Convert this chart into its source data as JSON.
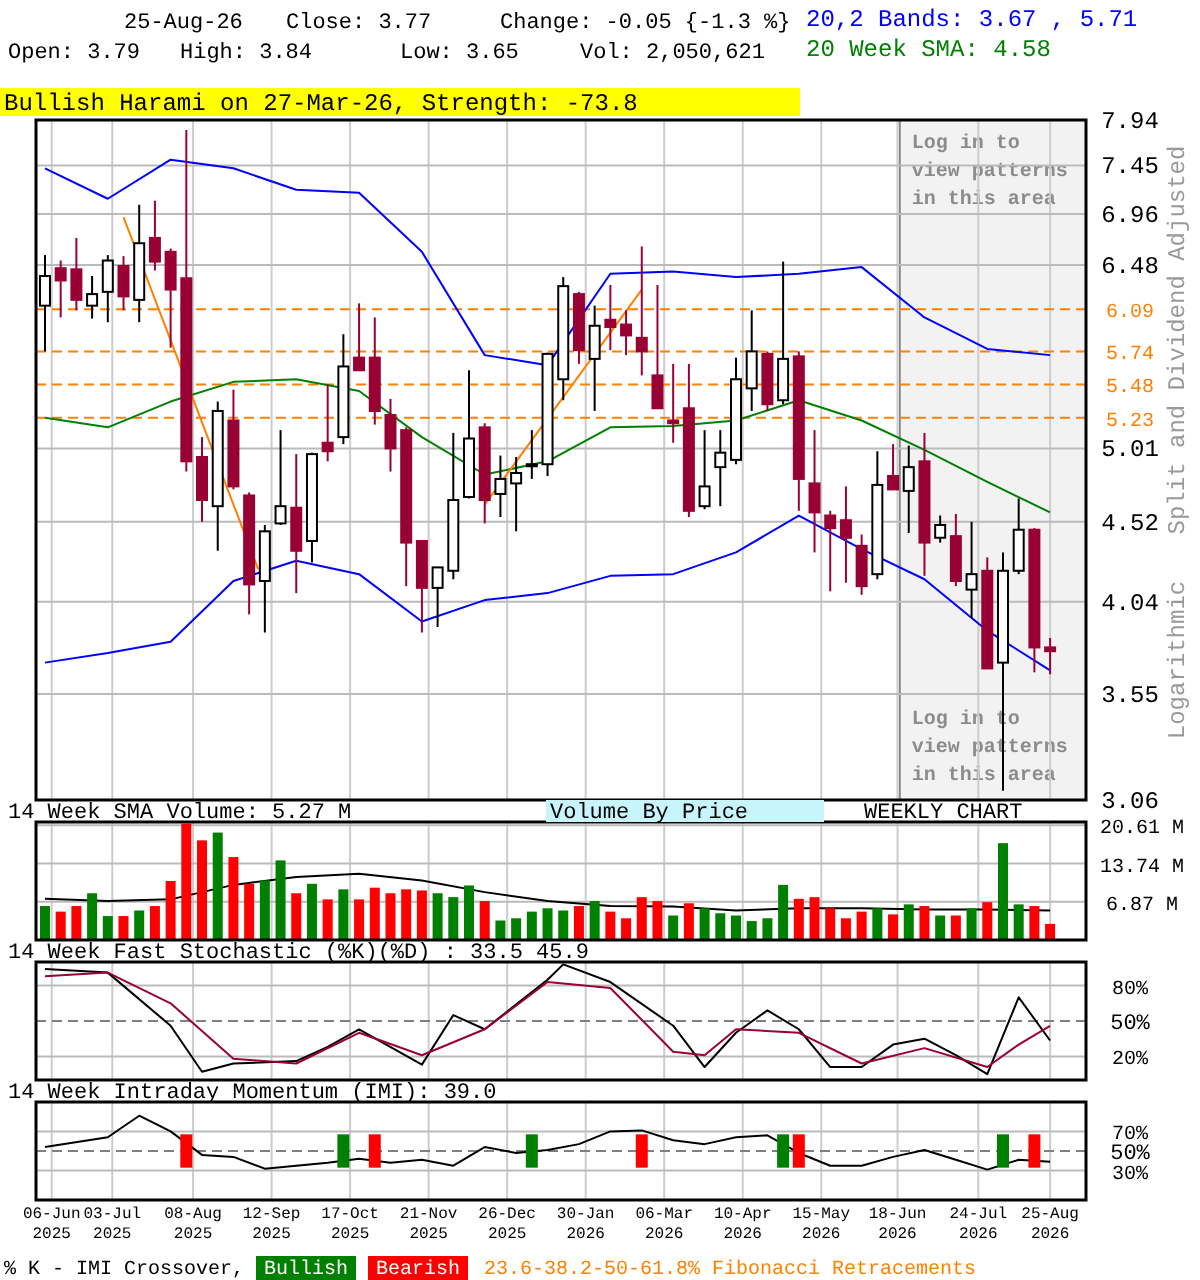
{
  "chart_data": [
    {
      "type": "candlestick",
      "title": "Bullish Harami on 27-Mar-26, Strength: -73.8",
      "ylabel": "Split and Dividend Adjusted",
      "log": true,
      "grid": true,
      "legend": "top right",
      "tick_labels": "y",
      "annotations": [
        "25-Aug-26",
        "Close: 3.77",
        "Change: -0.05 {-1.3 %}",
        "Open: 3.79",
        "High: 3.84",
        "Low: 3.65",
        "Vol: 2,050,621",
        "Logarithmic"
      ],
      "xlim": [
        "2025-05-30",
        "2026-09-10"
      ],
      "xticks": [
        "2025-06-06",
        "2025-07-03",
        "2025-08-08",
        "2025-09-12",
        "2025-10-17",
        "2025-11-21",
        "2025-12-26",
        "2026-01-30",
        "2026-03-06",
        "2026-04-10",
        "2026-05-15",
        "2026-06-18",
        "2026-07-24",
        "2026-08-25"
      ],
      "ylim": [
        3.06,
        7.94
      ],
      "yticks": [
        3.06,
        3.55,
        4.04,
        4.52,
        5.01,
        6.48,
        6.96,
        7.45,
        7.94
      ],
      "ref_lines": [
        {
          "axis": "y",
          "value": 6.09,
          "label": "6.09",
          "color": "#ff8000",
          "line_style": "dashed"
        },
        {
          "axis": "y",
          "value": 5.74,
          "label": "5.74",
          "color": "#ff8000",
          "line_style": "dashed"
        },
        {
          "axis": "y",
          "value": 5.48,
          "label": "5.48",
          "color": "#ff8000",
          "line_style": "dashed"
        },
        {
          "axis": "y",
          "value": 5.23,
          "label": "5.23",
          "color": "#ff8000",
          "line_style": "dashed"
        }
      ],
      "bands": [
        {
          "axis": "x",
          "from": "2026-06-19",
          "to": "2026-09-10",
          "label": "Log in to view patterns in this area",
          "color": "#f2f2f2"
        }
      ],
      "x": [
        "2025-06-03",
        "2025-06-10",
        "2025-06-17",
        "2025-06-24",
        "2025-07-01",
        "2025-07-08",
        "2025-07-15",
        "2025-07-22",
        "2025-07-29",
        "2025-08-05",
        "2025-08-12",
        "2025-08-19",
        "2025-08-26",
        "2025-09-02",
        "2025-09-09",
        "2025-09-16",
        "2025-09-23",
        "2025-09-30",
        "2025-10-07",
        "2025-10-14",
        "2025-10-21",
        "2025-10-28",
        "2025-11-04",
        "2025-11-11",
        "2025-11-18",
        "2025-11-25",
        "2025-12-02",
        "2025-12-09",
        "2025-12-16",
        "2025-12-23",
        "2025-12-30",
        "2026-01-06",
        "2026-01-13",
        "2026-01-20",
        "2026-01-27",
        "2026-02-03",
        "2026-02-10",
        "2026-02-17",
        "2026-02-24",
        "2026-03-03",
        "2026-03-10",
        "2026-03-17",
        "2026-03-24",
        "2026-03-31",
        "2026-04-07",
        "2026-04-14",
        "2026-04-21",
        "2026-04-28",
        "2026-05-05",
        "2026-05-12",
        "2026-05-19",
        "2026-05-26",
        "2026-06-02",
        "2026-06-09",
        "2026-06-16",
        "2026-06-23",
        "2026-06-30",
        "2026-07-07",
        "2026-07-14",
        "2026-07-21",
        "2026-07-28",
        "2026-08-04",
        "2026-08-11",
        "2026-08-18",
        "2026-08-25"
      ],
      "ohlc": [
        [
          6.12,
          6.57,
          5.74,
          6.38
        ],
        [
          6.45,
          6.52,
          6.02,
          6.34
        ],
        [
          6.44,
          6.73,
          6.08,
          6.17
        ],
        [
          6.12,
          6.38,
          6.01,
          6.22
        ],
        [
          6.24,
          6.57,
          5.98,
          6.52
        ],
        [
          6.47,
          6.56,
          6.08,
          6.2
        ],
        [
          6.17,
          7.05,
          5.98,
          6.68
        ],
        [
          6.73,
          7.09,
          6.43,
          6.51
        ],
        [
          6.6,
          6.63,
          5.77,
          6.26
        ],
        [
          6.36,
          7.83,
          4.85,
          4.92
        ],
        [
          4.95,
          5.09,
          4.52,
          4.66
        ],
        [
          4.62,
          5.35,
          4.34,
          5.28
        ],
        [
          5.21,
          5.44,
          4.73,
          4.75
        ],
        [
          4.69,
          4.71,
          3.97,
          4.14
        ],
        [
          4.16,
          4.5,
          3.87,
          4.46
        ],
        [
          4.51,
          5.14,
          4.5,
          4.62
        ],
        [
          4.61,
          4.97,
          4.09,
          4.34
        ],
        [
          4.4,
          4.98,
          4.27,
          4.97
        ],
        [
          5.05,
          5.48,
          4.92,
          4.99
        ],
        [
          5.09,
          5.88,
          5.04,
          5.62
        ],
        [
          5.69,
          6.14,
          5.59,
          5.59
        ],
        [
          5.69,
          6.02,
          5.18,
          5.28
        ],
        [
          5.25,
          5.37,
          4.85,
          5.01
        ],
        [
          5.14,
          5.16,
          4.13,
          4.39
        ],
        [
          4.4,
          4.4,
          3.87,
          4.12
        ],
        [
          4.12,
          4.24,
          3.9,
          4.24
        ],
        [
          4.22,
          5.12,
          4.17,
          4.66
        ],
        [
          4.68,
          5.59,
          4.67,
          5.08
        ],
        [
          5.16,
          5.19,
          4.51,
          4.66
        ],
        [
          4.7,
          4.96,
          4.55,
          4.8
        ],
        [
          4.77,
          4.95,
          4.46,
          4.84
        ],
        [
          4.89,
          5.14,
          4.8,
          4.9
        ],
        [
          4.9,
          5.73,
          4.82,
          5.72
        ],
        [
          5.52,
          6.37,
          5.36,
          6.29
        ],
        [
          6.22,
          6.24,
          5.64,
          5.75
        ],
        [
          5.68,
          6.12,
          5.28,
          5.95
        ],
        [
          6.0,
          6.3,
          5.75,
          5.94
        ],
        [
          5.96,
          6.08,
          5.71,
          5.87
        ],
        [
          5.85,
          6.65,
          5.55,
          5.74
        ],
        [
          5.55,
          6.3,
          5.3,
          5.3
        ],
        [
          5.21,
          5.64,
          5.05,
          5.19
        ],
        [
          5.3,
          5.64,
          4.55,
          4.59
        ],
        [
          4.62,
          5.14,
          4.6,
          4.75
        ],
        [
          4.88,
          5.14,
          4.62,
          4.98
        ],
        [
          4.93,
          5.69,
          4.9,
          5.52
        ],
        [
          5.45,
          6.08,
          5.28,
          5.74
        ],
        [
          5.72,
          5.74,
          5.28,
          5.33
        ],
        [
          5.36,
          6.51,
          5.33,
          5.68
        ],
        [
          5.7,
          5.74,
          4.59,
          4.8
        ],
        [
          4.77,
          5.14,
          4.33,
          4.58
        ],
        [
          4.56,
          4.59,
          4.1,
          4.48
        ],
        [
          4.53,
          4.75,
          4.15,
          4.42
        ],
        [
          4.37,
          4.44,
          4.08,
          4.13
        ],
        [
          4.2,
          4.99,
          4.17,
          4.76
        ],
        [
          4.82,
          5.04,
          4.73,
          4.73
        ],
        [
          4.72,
          5.03,
          4.45,
          4.88
        ],
        [
          4.92,
          5.12,
          4.19,
          4.39
        ],
        [
          4.42,
          4.56,
          4.39,
          4.5
        ],
        [
          4.43,
          4.57,
          4.13,
          4.16
        ],
        [
          4.11,
          4.52,
          3.95,
          4.2
        ],
        [
          4.22,
          4.3,
          3.68,
          3.68
        ],
        [
          3.71,
          4.33,
          3.1,
          4.22
        ],
        [
          4.22,
          4.67,
          4.2,
          4.47
        ],
        [
          4.47,
          4.48,
          3.66,
          3.79
        ],
        [
          3.79,
          3.84,
          3.65,
          3.77
        ]
      ],
      "series": [
        {
          "type": "line",
          "name": "20,2 Bands: 3.67 , 5.71",
          "color": "#0000ff",
          "x": [
            "2025-06-03",
            "2025-07-01",
            "2025-07-29",
            "2025-08-26",
            "2025-09-23",
            "2025-10-21",
            "2025-11-18",
            "2025-12-16",
            "2026-01-13",
            "2026-02-10",
            "2026-03-10",
            "2026-04-07",
            "2026-05-05",
            "2026-06-02",
            "2026-06-30",
            "2026-07-28",
            "2026-08-25"
          ],
          "values": [
            7.42,
            7.11,
            7.51,
            7.42,
            7.2,
            7.17,
            6.6,
            5.71,
            5.63,
            6.4,
            6.42,
            6.37,
            6.4,
            6.46,
            6.02,
            5.76,
            5.71
          ]
        },
        {
          "type": "line",
          "color": "#0000ff",
          "x": [
            "2025-06-03",
            "2025-07-01",
            "2025-07-29",
            "2025-08-26",
            "2025-09-23",
            "2025-10-21",
            "2025-11-18",
            "2025-12-16",
            "2026-01-13",
            "2026-02-10",
            "2026-03-10",
            "2026-04-07",
            "2026-05-05",
            "2026-06-02",
            "2026-06-30",
            "2026-07-28",
            "2026-08-25"
          ],
          "values": [
            3.71,
            3.76,
            3.82,
            4.16,
            4.28,
            4.2,
            3.93,
            4.05,
            4.09,
            4.19,
            4.2,
            4.33,
            4.56,
            4.35,
            4.17,
            3.88,
            3.67
          ]
        },
        {
          "type": "line",
          "name": "20 Week SMA: 4.58",
          "color": "#008000",
          "x": [
            "2025-06-03",
            "2025-07-01",
            "2025-07-29",
            "2025-08-26",
            "2025-09-23",
            "2025-10-21",
            "2025-11-18",
            "2025-12-16",
            "2026-01-13",
            "2026-02-10",
            "2026-03-10",
            "2026-04-07",
            "2026-05-05",
            "2026-06-02",
            "2026-06-30",
            "2026-07-28",
            "2026-08-25"
          ],
          "values": [
            5.23,
            5.16,
            5.35,
            5.5,
            5.52,
            5.43,
            5.09,
            4.83,
            4.92,
            5.16,
            5.17,
            5.21,
            5.36,
            5.21,
            5.0,
            4.78,
            4.58
          ]
        },
        {
          "type": "line",
          "color": "#ff8000",
          "x": [
            "2025-07-08",
            "2025-09-06"
          ],
          "values": [
            6.93,
            4.23
          ]
        },
        {
          "type": "line",
          "color": "#ff8000",
          "x": [
            "2025-12-16",
            "2026-02-24"
          ],
          "values": [
            4.63,
            6.26
          ]
        }
      ]
    },
    {
      "type": "bar",
      "grid": true,
      "legend": "top left",
      "tick_labels": "y",
      "annotations": [
        "Volume By Price",
        "WEEKLY CHART"
      ],
      "xlim": [
        "2025-05-30",
        "2026-09-10"
      ],
      "xticks": [
        "2025-06-06",
        "2025-07-03",
        "2025-08-08",
        "2025-09-12",
        "2025-10-17",
        "2025-11-21",
        "2025-12-26",
        "2026-01-30",
        "2026-03-06",
        "2026-04-10",
        "2026-05-15",
        "2026-06-18",
        "2026-07-24",
        "2026-08-25"
      ],
      "ylim": [
        0,
        21.2
      ],
      "yticks": [
        {
          "value": 6.87,
          "label": "6.87 M"
        },
        {
          "value": 13.74,
          "label": "13.74 M"
        },
        {
          "value": 20.61,
          "label": "20.61 M"
        }
      ],
      "x": [
        "2025-06-03",
        "2025-06-10",
        "2025-06-17",
        "2025-06-24",
        "2025-07-01",
        "2025-07-08",
        "2025-07-15",
        "2025-07-22",
        "2025-07-29",
        "2025-08-05",
        "2025-08-12",
        "2025-08-19",
        "2025-08-26",
        "2025-09-02",
        "2025-09-09",
        "2025-09-16",
        "2025-09-23",
        "2025-09-30",
        "2025-10-07",
        "2025-10-14",
        "2025-10-21",
        "2025-10-28",
        "2025-11-04",
        "2025-11-11",
        "2025-11-18",
        "2025-11-25",
        "2025-12-02",
        "2025-12-09",
        "2025-12-16",
        "2025-12-23",
        "2025-12-30",
        "2026-01-06",
        "2026-01-13",
        "2026-01-20",
        "2026-01-27",
        "2026-02-03",
        "2026-02-10",
        "2026-02-17",
        "2026-02-24",
        "2026-03-03",
        "2026-03-10",
        "2026-03-17",
        "2026-03-24",
        "2026-03-31",
        "2026-04-07",
        "2026-04-14",
        "2026-04-21",
        "2026-04-28",
        "2026-05-05",
        "2026-05-12",
        "2026-05-19",
        "2026-05-26",
        "2026-06-02",
        "2026-06-09",
        "2026-06-16",
        "2026-06-23",
        "2026-06-30",
        "2026-07-07",
        "2026-07-14",
        "2026-07-21",
        "2026-07-28",
        "2026-08-04",
        "2026-08-11",
        "2026-08-18",
        "2026-08-25"
      ],
      "values": [
        6.1,
        5.1,
        6.1,
        8.4,
        4.3,
        4.3,
        5.3,
        6.1,
        10.6,
        20.9,
        17.9,
        19.3,
        14.9,
        10.1,
        10.7,
        14.3,
        8.4,
        10.1,
        7.3,
        9.1,
        7.3,
        9.4,
        8.4,
        9.1,
        8.9,
        8.4,
        7.7,
        9.8,
        7.0,
        3.5,
        3.9,
        5.1,
        5.7,
        5.3,
        6.1,
        7.0,
        5.1,
        3.9,
        7.7,
        7.0,
        4.4,
        6.6,
        5.7,
        4.8,
        4.4,
        3.4,
        3.9,
        9.9,
        7.4,
        7.7,
        5.7,
        3.9,
        5.1,
        5.7,
        4.6,
        6.4,
        6.1,
        4.4,
        4.4,
        5.7,
        6.8,
        17.4,
        6.4,
        6.1,
        2.9
      ],
      "colors": [
        "#008000",
        "#ff0000",
        "#ff0000",
        "#008000",
        "#008000",
        "#ff0000",
        "#008000",
        "#ff0000",
        "#ff0000",
        "#ff0000",
        "#ff0000",
        "#008000",
        "#ff0000",
        "#ff0000",
        "#008000",
        "#008000",
        "#ff0000",
        "#008000",
        "#ff0000",
        "#008000",
        "#ff0000",
        "#ff0000",
        "#ff0000",
        "#ff0000",
        "#ff0000",
        "#008000",
        "#008000",
        "#008000",
        "#ff0000",
        "#008000",
        "#008000",
        "#008000",
        "#008000",
        "#008000",
        "#ff0000",
        "#008000",
        "#ff0000",
        "#ff0000",
        "#ff0000",
        "#ff0000",
        "#008000",
        "#ff0000",
        "#008000",
        "#008000",
        "#008000",
        "#008000",
        "#008000",
        "#008000",
        "#ff0000",
        "#ff0000",
        "#ff0000",
        "#ff0000",
        "#ff0000",
        "#008000",
        "#ff0000",
        "#008000",
        "#ff0000",
        "#008000",
        "#ff0000",
        "#008000",
        "#ff0000",
        "#008000",
        "#008000",
        "#ff0000",
        "#ff0000"
      ],
      "series": [
        {
          "type": "line",
          "name": "14 Week SMA Volume: 5.27 M",
          "color": "#000000",
          "x": [
            "2025-06-03",
            "2025-07-01",
            "2025-07-29",
            "2025-08-26",
            "2025-09-23",
            "2025-10-21",
            "2025-11-18",
            "2025-12-16",
            "2026-01-13",
            "2026-02-10",
            "2026-03-10",
            "2026-04-07",
            "2026-05-05",
            "2026-06-02",
            "2026-06-30",
            "2026-07-28",
            "2026-08-25"
          ],
          "values": [
            7.4,
            7.0,
            7.3,
            9.9,
            11.3,
            11.9,
            10.7,
            8.6,
            7.0,
            6.1,
            6.0,
            5.3,
            5.7,
            5.7,
            5.5,
            5.5,
            5.3
          ]
        }
      ]
    },
    {
      "type": "line",
      "title": "14 Week Fast Stochastic (%K)(%D) : 33.5 45.9",
      "grid": true,
      "tick_labels": "y",
      "xlim": [
        "2025-05-30",
        "2026-09-10"
      ],
      "xticks": [
        "2025-06-06",
        "2025-07-03",
        "2025-08-08",
        "2025-09-12",
        "2025-10-17",
        "2025-11-21",
        "2025-12-26",
        "2026-01-30",
        "2026-03-06",
        "2026-04-10",
        "2026-05-15",
        "2026-06-18",
        "2026-07-24",
        "2026-08-25"
      ],
      "ylim": [
        0,
        100
      ],
      "yticks": [
        {
          "value": 20,
          "label": "20%"
        },
        {
          "value": 80,
          "label": "80%"
        }
      ],
      "ref_lines": [
        {
          "axis": "y",
          "value": 50,
          "label": "50%",
          "color": "#808080",
          "line_style": "dashed"
        }
      ],
      "series": [
        {
          "color": "#000000",
          "x": [
            "2025-06-03",
            "2025-07-01",
            "2025-07-29",
            "2025-08-12",
            "2025-08-26",
            "2025-09-23",
            "2025-10-07",
            "2025-10-21",
            "2025-11-18",
            "2025-12-02",
            "2025-12-16",
            "2026-01-13",
            "2026-01-20",
            "2026-02-10",
            "2026-03-10",
            "2026-03-24",
            "2026-04-07",
            "2026-04-21",
            "2026-05-05",
            "2026-05-19",
            "2026-06-02",
            "2026-06-16",
            "2026-06-30",
            "2026-07-14",
            "2026-07-28",
            "2026-08-11",
            "2026-08-25"
          ],
          "values": [
            94,
            91,
            46,
            7,
            14,
            16,
            28,
            43,
            13,
            55,
            43,
            85,
            98,
            83,
            46,
            11,
            40,
            59,
            43,
            11,
            11,
            30,
            35,
            21,
            5,
            70,
            33.5
          ]
        },
        {
          "color": "#990033",
          "x": [
            "2025-06-03",
            "2025-07-01",
            "2025-07-29",
            "2025-08-26",
            "2025-09-23",
            "2025-10-21",
            "2025-11-18",
            "2025-12-16",
            "2026-01-13",
            "2026-02-10",
            "2026-03-10",
            "2026-03-24",
            "2026-04-07",
            "2026-05-05",
            "2026-06-02",
            "2026-06-30",
            "2026-07-28",
            "2026-08-11",
            "2026-08-25"
          ],
          "values": [
            88,
            91,
            65,
            18,
            14,
            40,
            21,
            43,
            83,
            78,
            24,
            21,
            43,
            40,
            14,
            27,
            11,
            30,
            45.9
          ]
        }
      ]
    },
    {
      "type": "line",
      "title": "14 Week Intraday Momentum (IMI): 39.0",
      "grid": true,
      "legend": "bottom",
      "legend_title": "% K - IMI Crossover,",
      "annotations": [
        "23.6-38.2-50-61.8% Fibonacci Retracements"
      ],
      "xlim": [
        "2025-05-30",
        "2026-09-10"
      ],
      "xticks": [
        {
          "value": "2025-06-06",
          "label": "06-Jun 2025"
        },
        {
          "value": "2025-07-03",
          "label": "03-Jul 2025"
        },
        {
          "value": "2025-08-08",
          "label": "08-Aug 2025"
        },
        {
          "value": "2025-09-12",
          "label": "12-Sep 2025"
        },
        {
          "value": "2025-10-17",
          "label": "17-Oct 2025"
        },
        {
          "value": "2025-11-21",
          "label": "21-Nov 2025"
        },
        {
          "value": "2025-12-26",
          "label": "26-Dec 2025"
        },
        {
          "value": "2026-01-30",
          "label": "30-Jan 2026"
        },
        {
          "value": "2026-03-06",
          "label": "06-Mar 2026"
        },
        {
          "value": "2026-04-10",
          "label": "10-Apr 2026"
        },
        {
          "value": "2026-05-15",
          "label": "15-May 2026"
        },
        {
          "value": "2026-06-18",
          "label": "18-Jun 2026"
        },
        {
          "value": "2026-07-24",
          "label": "24-Jul 2026"
        },
        {
          "value": "2026-08-25",
          "label": "25-Aug 2026"
        }
      ],
      "ylim": [
        0,
        100
      ],
      "yticks": [
        {
          "value": 30,
          "label": "30%"
        },
        {
          "value": 70,
          "label": "70%"
        }
      ],
      "ref_lines": [
        {
          "axis": "y",
          "value": 50,
          "label": "50%",
          "color": "#808080",
          "line_style": "dashed"
        }
      ],
      "series": [
        {
          "color": "#000000",
          "x": [
            "2025-06-03",
            "2025-07-01",
            "2025-07-15",
            "2025-07-29",
            "2025-08-12",
            "2025-08-26",
            "2025-09-09",
            "2025-09-23",
            "2025-10-07",
            "2025-10-21",
            "2025-11-04",
            "2025-11-18",
            "2025-12-02",
            "2025-12-16",
            "2025-12-30",
            "2026-01-13",
            "2026-01-27",
            "2026-02-10",
            "2026-02-24",
            "2026-03-10",
            "2026-03-24",
            "2026-04-07",
            "2026-04-21",
            "2026-05-05",
            "2026-05-19",
            "2026-06-02",
            "2026-06-16",
            "2026-06-30",
            "2026-07-14",
            "2026-07-28",
            "2026-08-11",
            "2026-08-25"
          ],
          "values": [
            54,
            64,
            86,
            70,
            46,
            44,
            32,
            35,
            38,
            42,
            38,
            41,
            35,
            54,
            48,
            51,
            57,
            70,
            71,
            61,
            57,
            64,
            66,
            48,
            35,
            35,
            44,
            51,
            41,
            31,
            41,
            39.0
          ]
        },
        {
          "type": "bar",
          "name": "Bullish",
          "color": "#008000",
          "x": [
            "2025-10-14",
            "2026-01-06",
            "2026-04-28",
            "2026-08-04"
          ],
          "base": [
            33,
            33,
            33,
            33
          ],
          "values": [
            34,
            34,
            34,
            34
          ]
        },
        {
          "type": "bar",
          "name": "Bearish",
          "color": "#ff0000",
          "x": [
            "2025-08-05",
            "2025-10-28",
            "2026-02-24",
            "2026-05-05",
            "2026-08-18"
          ],
          "base": [
            33,
            33,
            33,
            33,
            33
          ],
          "values": [
            34,
            34,
            34,
            34,
            34
          ]
        }
      ]
    }
  ]
}
